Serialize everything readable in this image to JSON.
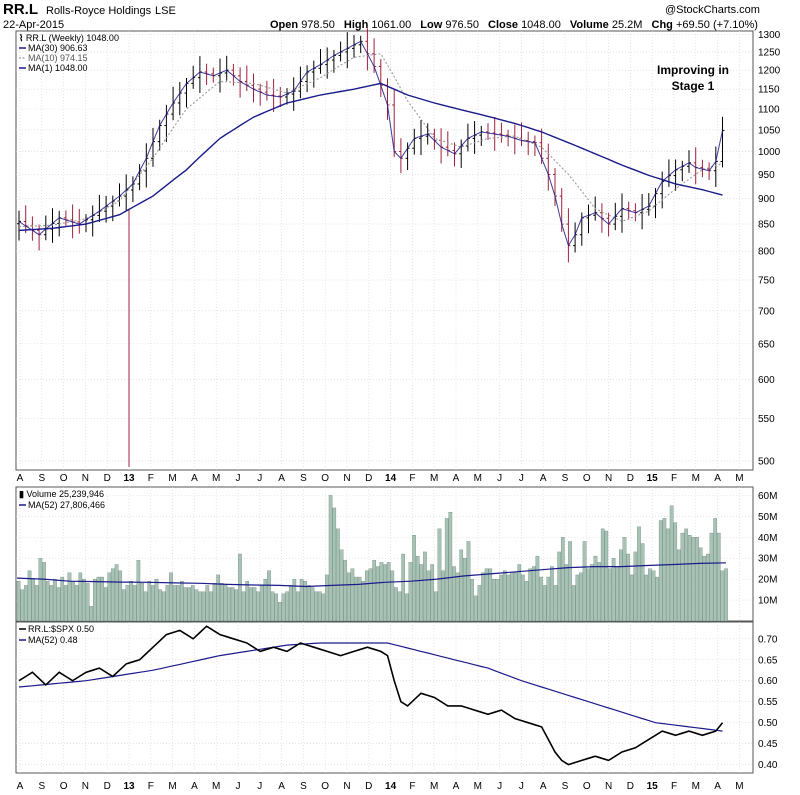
{
  "header": {
    "symbol": "RR.L",
    "company": "Rolls-Royce Holdings",
    "exchange": "LSE",
    "date": "22-Apr-2015",
    "open_label": "Open",
    "open": "978.50",
    "high_label": "High",
    "high": "1061.00",
    "low_label": "Low",
    "low": "976.50",
    "close_label": "Close",
    "close": "1048.00",
    "volume_label": "Volume",
    "volume": "25.2M",
    "chg_label": "Chg",
    "chg": "+69.50 (+7.10%)",
    "watermark": "@StockCharts.com"
  },
  "colors": {
    "price_up": "#000000",
    "price_down": "#a0203a",
    "ma30": "#1a1a8c",
    "ma10": "#9a9a9a",
    "ma1": "#1a1a8c",
    "volume_bar": "#a9c2b6",
    "volume_bar_stroke": "#5c7a6c",
    "ratio_line": "#000000",
    "grid": "#d4d4d4"
  },
  "legend": {
    "price_title": "RR.L (Weekly) 1048.00",
    "ma30": "MA(30) 906.63",
    "ma10": "MA(10) 974.15",
    "ma1": "MA(1) 1048.00",
    "volume_title": "Volume 25,239,946",
    "volume_ma": "MA(52) 27,806,466",
    "ratio_title": "RR.L:$SPX 0.50",
    "ratio_ma": "MA(52) 0.48"
  },
  "annotation": {
    "line1": "Improving in",
    "line2": "Stage 1"
  },
  "x_labels": [
    "A",
    "S",
    "O",
    "N",
    "D",
    "13",
    "F",
    "M",
    "A",
    "M",
    "J",
    "J",
    "A",
    "S",
    "O",
    "N",
    "D",
    "14",
    "F",
    "M",
    "A",
    "M",
    "J",
    "J",
    "A",
    "S",
    "O",
    "N",
    "D",
    "15",
    "F",
    "M",
    "A",
    "M"
  ],
  "chart_data": [
    {
      "panel": "price",
      "type": "line",
      "title": "RR.L (Weekly) 1048.00",
      "scale": "log",
      "ylim": [
        490,
        1310
      ],
      "yticks": [
        500,
        550,
        600,
        650,
        700,
        750,
        800,
        850,
        900,
        950,
        1000,
        1050,
        1100,
        1150,
        1200,
        1250,
        1300
      ],
      "anchors": {
        "close": [
          [
            0,
            855
          ],
          [
            3,
            830
          ],
          [
            6,
            862
          ],
          [
            9,
            850
          ],
          [
            12,
            875
          ],
          [
            15,
            905
          ],
          [
            17,
            930
          ],
          [
            19,
            985
          ],
          [
            21,
            1060
          ],
          [
            23,
            1115
          ],
          [
            25,
            1165
          ],
          [
            27,
            1195
          ],
          [
            29,
            1185
          ],
          [
            31,
            1200
          ],
          [
            33,
            1170
          ],
          [
            35,
            1150
          ],
          [
            37,
            1135
          ],
          [
            39,
            1130
          ],
          [
            41,
            1145
          ],
          [
            43,
            1195
          ],
          [
            45,
            1215
          ],
          [
            47,
            1240
          ],
          [
            49,
            1260
          ],
          [
            51,
            1280
          ],
          [
            53,
            1210
          ],
          [
            55,
            1110
          ],
          [
            56,
            1000
          ],
          [
            57,
            985
          ],
          [
            59,
            1030
          ],
          [
            61,
            1040
          ],
          [
            63,
            1010
          ],
          [
            65,
            995
          ],
          [
            67,
            1030
          ],
          [
            69,
            1045
          ],
          [
            71,
            1040
          ],
          [
            73,
            1035
          ],
          [
            75,
            1025
          ],
          [
            77,
            1020
          ],
          [
            79,
            950
          ],
          [
            80,
            905
          ],
          [
            81,
            850
          ],
          [
            82,
            810
          ],
          [
            83,
            830
          ],
          [
            84,
            862
          ],
          [
            86,
            872
          ],
          [
            88,
            850
          ],
          [
            90,
            880
          ],
          [
            92,
            872
          ],
          [
            94,
            885
          ],
          [
            96,
            935
          ],
          [
            98,
            960
          ],
          [
            100,
            975
          ],
          [
            101,
            965
          ],
          [
            103,
            958
          ],
          [
            104,
            978
          ],
          [
            105,
            1048
          ]
        ],
        "ma30": [
          [
            0,
            838
          ],
          [
            5,
            842
          ],
          [
            10,
            850
          ],
          [
            15,
            868
          ],
          [
            20,
            905
          ],
          [
            25,
            960
          ],
          [
            30,
            1030
          ],
          [
            35,
            1080
          ],
          [
            40,
            1115
          ],
          [
            45,
            1135
          ],
          [
            50,
            1150
          ],
          [
            54,
            1165
          ],
          [
            58,
            1135
          ],
          [
            62,
            1115
          ],
          [
            66,
            1098
          ],
          [
            70,
            1082
          ],
          [
            74,
            1065
          ],
          [
            78,
            1045
          ],
          [
            82,
            1020
          ],
          [
            86,
            995
          ],
          [
            90,
            970
          ],
          [
            94,
            948
          ],
          [
            98,
            930
          ],
          [
            102,
            918
          ],
          [
            105,
            907
          ]
        ],
        "ma10": [
          [
            0,
            845
          ],
          [
            5,
            848
          ],
          [
            10,
            860
          ],
          [
            15,
            895
          ],
          [
            20,
            985
          ],
          [
            25,
            1100
          ],
          [
            30,
            1170
          ],
          [
            35,
            1165
          ],
          [
            40,
            1140
          ],
          [
            45,
            1180
          ],
          [
            50,
            1235
          ],
          [
            54,
            1245
          ],
          [
            58,
            1120
          ],
          [
            62,
            1030
          ],
          [
            66,
            1010
          ],
          [
            70,
            1030
          ],
          [
            74,
            1035
          ],
          [
            78,
            1010
          ],
          [
            82,
            950
          ],
          [
            86,
            880
          ],
          [
            90,
            855
          ],
          [
            94,
            875
          ],
          [
            98,
            920
          ],
          [
            102,
            960
          ],
          [
            105,
            974
          ]
        ]
      },
      "series": [
        {
          "name": "RR.L (Weekly)",
          "values": "OHLC weekly bars, Aug 2012 - Apr 2015"
        },
        {
          "name": "MA(30)",
          "values": 906.63
        },
        {
          "name": "MA(10)",
          "values": 974.15
        },
        {
          "name": "MA(1)",
          "values": 1048.0
        }
      ]
    },
    {
      "panel": "volume",
      "type": "bar",
      "title": "Volume 25,239,946",
      "ylim": [
        0,
        64
      ],
      "yticks": [
        10,
        20,
        30,
        40,
        50,
        60
      ],
      "ytick_labels": [
        "10M",
        "20M",
        "30M",
        "40M",
        "50M",
        "60M"
      ],
      "units": "millions of shares",
      "values": [
        19,
        15,
        17,
        24,
        20,
        17,
        30,
        28,
        19,
        17,
        20,
        16,
        21,
        17,
        23,
        19,
        17,
        23,
        20,
        18,
        7,
        20,
        21,
        21,
        16,
        23,
        25,
        27,
        24,
        15,
        17,
        19,
        17,
        29,
        18,
        14,
        19,
        17,
        20,
        15,
        14,
        17,
        23,
        17,
        17,
        19,
        16,
        16,
        17,
        15,
        14,
        14,
        17,
        14,
        18,
        22,
        18,
        17,
        16,
        16,
        15,
        32,
        14,
        19,
        16,
        16,
        14,
        17,
        20,
        24,
        14,
        13,
        9,
        13,
        14,
        17,
        20,
        14,
        20,
        19,
        17,
        16,
        14,
        14,
        13,
        22,
        60,
        54,
        44,
        34,
        29,
        23,
        25,
        21,
        21,
        19,
        24,
        25,
        29,
        26,
        28,
        27,
        28,
        24,
        16,
        14,
        32,
        13,
        28,
        41,
        31,
        27,
        33,
        24,
        27,
        14,
        44,
        24,
        49,
        52,
        26,
        23,
        34,
        30,
        38,
        20,
        12,
        17,
        23,
        25,
        25,
        20,
        20,
        22,
        24,
        22,
        23,
        23,
        27,
        22,
        19,
        25,
        26,
        31,
        21,
        17,
        21,
        26,
        17,
        33,
        40,
        27,
        38,
        17,
        22,
        23,
        38,
        25,
        27,
        31,
        28,
        44,
        43,
        25,
        30,
        26,
        34,
        40,
        32,
        22,
        33,
        45,
        37,
        22,
        25,
        24,
        21,
        48,
        49,
        44,
        55,
        47,
        34,
        42,
        44,
        41,
        40,
        40,
        35,
        31,
        32,
        42,
        49,
        42,
        24,
        25
      ],
      "series": [
        {
          "name": "Volume",
          "value": "25,239,946"
        },
        {
          "name": "MA(52)",
          "value": "27,806,466",
          "values": [
            20.5,
            20,
            19,
            18.8,
            18.6,
            18.5,
            18.2,
            18,
            17.5,
            17.2,
            17,
            16.5,
            17,
            17.5,
            18.5,
            19,
            20,
            21.5,
            22.5,
            23.5,
            24.5,
            25.5,
            26,
            26,
            26.5,
            27,
            27.5,
            27.8
          ]
        }
      ]
    },
    {
      "panel": "ratio",
      "type": "line",
      "title": "RR.L:$SPX 0.50",
      "ylim": [
        0.38,
        0.74
      ],
      "yticks": [
        0.4,
        0.45,
        0.5,
        0.55,
        0.6,
        0.65,
        0.7
      ],
      "anchors": {
        "ratio": [
          [
            0,
            0.6
          ],
          [
            2,
            0.62
          ],
          [
            4,
            0.59
          ],
          [
            6,
            0.62
          ],
          [
            8,
            0.6
          ],
          [
            10,
            0.62
          ],
          [
            12,
            0.63
          ],
          [
            14,
            0.61
          ],
          [
            16,
            0.64
          ],
          [
            18,
            0.65
          ],
          [
            20,
            0.68
          ],
          [
            22,
            0.71
          ],
          [
            24,
            0.72
          ],
          [
            26,
            0.7
          ],
          [
            28,
            0.73
          ],
          [
            30,
            0.71
          ],
          [
            32,
            0.7
          ],
          [
            34,
            0.69
          ],
          [
            36,
            0.67
          ],
          [
            38,
            0.68
          ],
          [
            40,
            0.67
          ],
          [
            42,
            0.69
          ],
          [
            44,
            0.68
          ],
          [
            46,
            0.67
          ],
          [
            48,
            0.66
          ],
          [
            50,
            0.67
          ],
          [
            52,
            0.68
          ],
          [
            54,
            0.67
          ],
          [
            55,
            0.66
          ],
          [
            56,
            0.6
          ],
          [
            57,
            0.55
          ],
          [
            58,
            0.54
          ],
          [
            60,
            0.57
          ],
          [
            62,
            0.56
          ],
          [
            64,
            0.54
          ],
          [
            66,
            0.54
          ],
          [
            68,
            0.53
          ],
          [
            70,
            0.52
          ],
          [
            72,
            0.53
          ],
          [
            74,
            0.51
          ],
          [
            76,
            0.5
          ],
          [
            78,
            0.49
          ],
          [
            79,
            0.46
          ],
          [
            80,
            0.43
          ],
          [
            81,
            0.41
          ],
          [
            82,
            0.4
          ],
          [
            84,
            0.41
          ],
          [
            86,
            0.42
          ],
          [
            88,
            0.41
          ],
          [
            90,
            0.43
          ],
          [
            92,
            0.44
          ],
          [
            94,
            0.46
          ],
          [
            96,
            0.48
          ],
          [
            98,
            0.47
          ],
          [
            100,
            0.48
          ],
          [
            102,
            0.47
          ],
          [
            104,
            0.48
          ],
          [
            105,
            0.5
          ]
        ],
        "ma52": [
          [
            0,
            0.585
          ],
          [
            10,
            0.6
          ],
          [
            20,
            0.625
          ],
          [
            30,
            0.66
          ],
          [
            40,
            0.685
          ],
          [
            45,
            0.69
          ],
          [
            50,
            0.69
          ],
          [
            55,
            0.69
          ],
          [
            60,
            0.67
          ],
          [
            65,
            0.65
          ],
          [
            70,
            0.63
          ],
          [
            75,
            0.6
          ],
          [
            80,
            0.575
          ],
          [
            85,
            0.55
          ],
          [
            90,
            0.525
          ],
          [
            95,
            0.5
          ],
          [
            100,
            0.49
          ],
          [
            105,
            0.48
          ]
        ]
      },
      "series": [
        {
          "name": "RR.L:$SPX",
          "values": 0.5
        },
        {
          "name": "MA(52)",
          "values": 0.48
        }
      ]
    }
  ]
}
